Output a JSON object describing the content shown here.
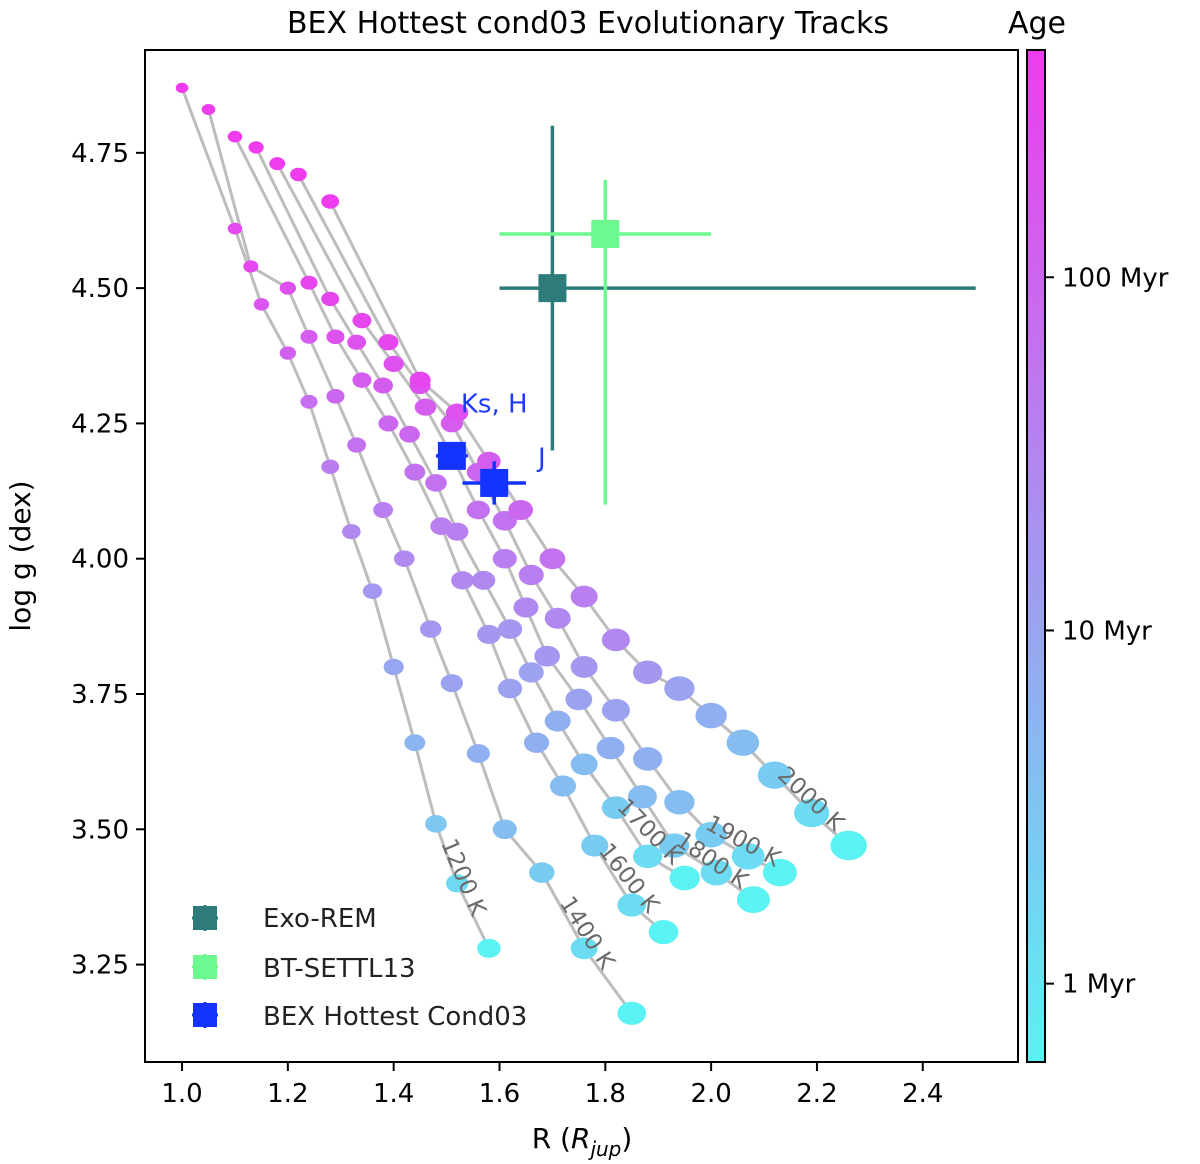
{
  "chart_data": {
    "type": "scatter",
    "title": "BEX Hottest cond03 Evolutionary Tracks",
    "xlabel_main": "R (",
    "xlabel_sym": "R",
    "xlabel_sub": "jup",
    "xlabel_close": ")",
    "ylabel": "log g (dex)",
    "xlim": [
      0.93,
      2.58
    ],
    "ylim": [
      3.07,
      4.94
    ],
    "x_ticks": [
      1.0,
      1.2,
      1.4,
      1.6,
      1.8,
      2.0,
      2.2,
      2.4
    ],
    "x_tick_labels": [
      "1.0",
      "1.2",
      "1.4",
      "1.6",
      "1.8",
      "2.0",
      "2.2",
      "2.4"
    ],
    "y_ticks": [
      3.25,
      3.5,
      3.75,
      4.0,
      4.25,
      4.5,
      4.75
    ],
    "y_tick_labels": [
      "3.25",
      "3.50",
      "3.75",
      "4.00",
      "4.25",
      "4.50",
      "4.75"
    ],
    "colorbar": {
      "label": "Age",
      "scale": "log",
      "range_myr": [
        0.6,
        440
      ],
      "color_young": "#5af2f2",
      "color_old": "#ee3cee",
      "ticks": [
        {
          "label": "1 Myr",
          "value": 1
        },
        {
          "label": "10 Myr",
          "value": 10
        },
        {
          "label": "100 Myr",
          "value": 100
        }
      ]
    },
    "tracks": [
      {
        "name": "1200 K",
        "points": [
          [
            1.0,
            4.87
          ],
          [
            1.1,
            4.61
          ],
          [
            1.15,
            4.47
          ],
          [
            1.2,
            4.38
          ],
          [
            1.24,
            4.29
          ],
          [
            1.28,
            4.17
          ],
          [
            1.32,
            4.05
          ],
          [
            1.36,
            3.94
          ],
          [
            1.4,
            3.8
          ],
          [
            1.44,
            3.66
          ],
          [
            1.48,
            3.51
          ],
          [
            1.52,
            3.4
          ],
          [
            1.58,
            3.28
          ]
        ]
      },
      {
        "name": "1400 K",
        "points": [
          [
            1.05,
            4.83
          ],
          [
            1.13,
            4.54
          ],
          [
            1.2,
            4.5
          ],
          [
            1.24,
            4.41
          ],
          [
            1.29,
            4.3
          ],
          [
            1.33,
            4.21
          ],
          [
            1.38,
            4.09
          ],
          [
            1.42,
            4.0
          ],
          [
            1.47,
            3.87
          ],
          [
            1.51,
            3.77
          ],
          [
            1.56,
            3.64
          ],
          [
            1.61,
            3.5
          ],
          [
            1.68,
            3.42
          ],
          [
            1.76,
            3.28
          ],
          [
            1.85,
            3.16
          ]
        ]
      },
      {
        "name": "1600 K",
        "points": [
          [
            1.1,
            4.78
          ],
          [
            1.24,
            4.51
          ],
          [
            1.29,
            4.41
          ],
          [
            1.34,
            4.33
          ],
          [
            1.39,
            4.25
          ],
          [
            1.44,
            4.16
          ],
          [
            1.49,
            4.06
          ],
          [
            1.53,
            3.96
          ],
          [
            1.58,
            3.86
          ],
          [
            1.62,
            3.76
          ],
          [
            1.67,
            3.66
          ],
          [
            1.72,
            3.58
          ],
          [
            1.78,
            3.47
          ],
          [
            1.85,
            3.36
          ],
          [
            1.91,
            3.31
          ]
        ]
      },
      {
        "name": "1700 K",
        "points": [
          [
            1.14,
            4.76
          ],
          [
            1.28,
            4.48
          ],
          [
            1.33,
            4.4
          ],
          [
            1.38,
            4.32
          ],
          [
            1.43,
            4.23
          ],
          [
            1.48,
            4.14
          ],
          [
            1.52,
            4.05
          ],
          [
            1.57,
            3.96
          ],
          [
            1.62,
            3.87
          ],
          [
            1.66,
            3.79
          ],
          [
            1.71,
            3.7
          ],
          [
            1.76,
            3.62
          ],
          [
            1.82,
            3.54
          ],
          [
            1.88,
            3.45
          ],
          [
            1.95,
            3.41
          ]
        ]
      },
      {
        "name": "1800 K",
        "points": [
          [
            1.18,
            4.73
          ],
          [
            1.34,
            4.44
          ],
          [
            1.4,
            4.36
          ],
          [
            1.46,
            4.28
          ],
          [
            1.51,
            4.19
          ],
          [
            1.56,
            4.09
          ],
          [
            1.61,
            4.0
          ],
          [
            1.65,
            3.91
          ],
          [
            1.69,
            3.82
          ],
          [
            1.75,
            3.74
          ],
          [
            1.81,
            3.65
          ],
          [
            1.87,
            3.56
          ],
          [
            1.93,
            3.47
          ],
          [
            2.01,
            3.42
          ],
          [
            2.08,
            3.37
          ]
        ]
      },
      {
        "name": "1900 K",
        "points": [
          [
            1.22,
            4.71
          ],
          [
            1.39,
            4.4
          ],
          [
            1.45,
            4.32
          ],
          [
            1.51,
            4.25
          ],
          [
            1.56,
            4.16
          ],
          [
            1.61,
            4.07
          ],
          [
            1.66,
            3.97
          ],
          [
            1.71,
            3.89
          ],
          [
            1.76,
            3.8
          ],
          [
            1.82,
            3.72
          ],
          [
            1.88,
            3.63
          ],
          [
            1.94,
            3.55
          ],
          [
            2.0,
            3.49
          ],
          [
            2.07,
            3.45
          ],
          [
            2.13,
            3.42
          ]
        ]
      },
      {
        "name": "2000 K",
        "points": [
          [
            1.28,
            4.66
          ],
          [
            1.45,
            4.33
          ],
          [
            1.52,
            4.27
          ],
          [
            1.58,
            4.18
          ],
          [
            1.64,
            4.09
          ],
          [
            1.7,
            4.0
          ],
          [
            1.76,
            3.93
          ],
          [
            1.82,
            3.85
          ],
          [
            1.88,
            3.79
          ],
          [
            1.94,
            3.76
          ],
          [
            2.0,
            3.71
          ],
          [
            2.06,
            3.66
          ],
          [
            2.12,
            3.6
          ],
          [
            2.19,
            3.53
          ],
          [
            2.26,
            3.47
          ]
        ]
      }
    ],
    "track_labels": [
      "1200 K",
      "1400 K",
      "1600 K",
      "1700 K",
      "1800 K",
      "1900 K",
      "2000 K"
    ],
    "observations": [
      {
        "name": "Exo-REM",
        "color": "#2e7b7b",
        "x": 1.7,
        "y": 4.5,
        "xerr": [
          0.1,
          0.8
        ],
        "yerr": [
          0.3,
          0.3
        ]
      },
      {
        "name": "BT-SETTL13",
        "color": "#6cf98f",
        "x": 1.8,
        "y": 4.6,
        "xerr": [
          0.2,
          0.2
        ],
        "yerr": [
          0.5,
          0.1
        ]
      },
      {
        "name": "BEX Hottest Cond03",
        "color": "#1433ff",
        "x": 1.51,
        "y": 4.19,
        "xerr": [
          0.03,
          0.03
        ],
        "yerr": [
          0.02,
          0.02
        ]
      },
      {
        "name": "BEX Hottest Cond03",
        "color": "#1433ff",
        "x": 1.59,
        "y": 4.14,
        "xerr": [
          0.06,
          0.06
        ],
        "yerr": [
          0.04,
          0.04
        ]
      }
    ],
    "annotations": [
      {
        "text": "Ks, H",
        "x": 1.59,
        "y": 4.27
      },
      {
        "text": "J",
        "x": 1.68,
        "y": 4.17
      }
    ],
    "legend": {
      "position": "lower-left",
      "entries": [
        {
          "label": "Exo-REM",
          "color": "#2e7b7b"
        },
        {
          "label": "BT-SETTL13",
          "color": "#6cf98f"
        },
        {
          "label": "BEX Hottest Cond03",
          "color": "#1433ff"
        }
      ]
    }
  }
}
